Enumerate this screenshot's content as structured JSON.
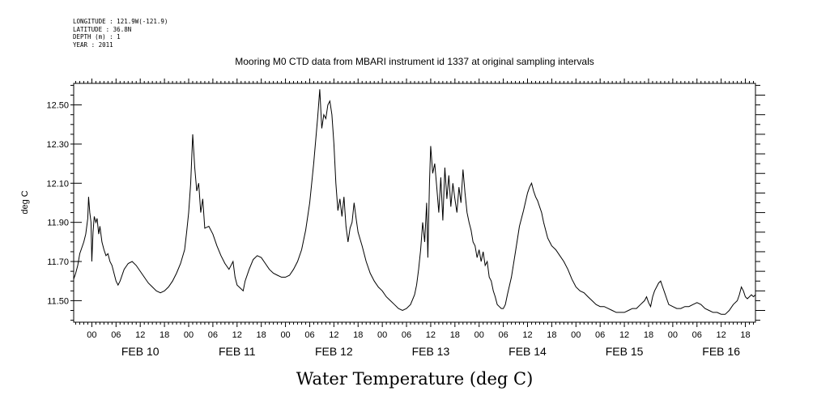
{
  "header": {
    "lines": [
      "LONGITUDE : 121.9W(-121.9)",
      "LATITUDE : 36.8N",
      "DEPTH (m) : 1",
      "YEAR : 2011"
    ]
  },
  "chart_data": {
    "type": "line",
    "title": "Mooring M0 CTD data from MBARI instrument id 1337 at original sampling intervals",
    "xlabel": "Water Temperature (deg C)",
    "ylabel": "deg C",
    "ylim": [
      11.39,
      12.61
    ],
    "xlim_hours_from_feb10_00": [
      -4.5,
      164.5
    ],
    "y_ticks": [
      "11.50",
      "11.70",
      "11.90",
      "12.10",
      "12.30",
      "12.50"
    ],
    "y_tick_values": [
      11.5,
      11.7,
      11.9,
      12.1,
      12.3,
      12.5
    ],
    "hour_tick_labels": [
      "00",
      "06",
      "12",
      "18"
    ],
    "date_labels": [
      "FEB 10",
      "FEB 11",
      "FEB 12",
      "FEB 13",
      "FEB 14",
      "FEB 15",
      "FEB 16"
    ],
    "grid": false,
    "series": [
      {
        "points": [
          [
            -4.5,
            11.61
          ],
          [
            -4,
            11.64
          ],
          [
            -3.5,
            11.68
          ],
          [
            -3,
            11.74
          ],
          [
            -2.5,
            11.77
          ],
          [
            -2,
            11.8
          ],
          [
            -1.5,
            11.84
          ],
          [
            -1,
            11.92
          ],
          [
            -0.8,
            12.03
          ],
          [
            -0.5,
            11.95
          ],
          [
            -0.2,
            11.9
          ],
          [
            0,
            11.7
          ],
          [
            0.3,
            11.85
          ],
          [
            0.6,
            11.93
          ],
          [
            1,
            11.9
          ],
          [
            1.3,
            11.92
          ],
          [
            1.7,
            11.84
          ],
          [
            2,
            11.88
          ],
          [
            2.5,
            11.8
          ],
          [
            3,
            11.76
          ],
          [
            3.5,
            11.73
          ],
          [
            4,
            11.74
          ],
          [
            4.5,
            11.7
          ],
          [
            5,
            11.68
          ],
          [
            5.5,
            11.64
          ],
          [
            6,
            11.6
          ],
          [
            6.5,
            11.58
          ],
          [
            7,
            11.6
          ],
          [
            8,
            11.66
          ],
          [
            9,
            11.69
          ],
          [
            10,
            11.7
          ],
          [
            11,
            11.68
          ],
          [
            12,
            11.65
          ],
          [
            13,
            11.62
          ],
          [
            14,
            11.59
          ],
          [
            15,
            11.57
          ],
          [
            16,
            11.55
          ],
          [
            17,
            11.54
          ],
          [
            18,
            11.55
          ],
          [
            19,
            11.57
          ],
          [
            20,
            11.6
          ],
          [
            21,
            11.64
          ],
          [
            22,
            11.69
          ],
          [
            23,
            11.76
          ],
          [
            23.5,
            11.85
          ],
          [
            24,
            11.95
          ],
          [
            24.5,
            12.1
          ],
          [
            25,
            12.35
          ],
          [
            25.5,
            12.18
          ],
          [
            26,
            12.06
          ],
          [
            26.5,
            12.1
          ],
          [
            27,
            11.95
          ],
          [
            27.5,
            12.02
          ],
          [
            28,
            11.87
          ],
          [
            29,
            11.88
          ],
          [
            30,
            11.84
          ],
          [
            31,
            11.78
          ],
          [
            32,
            11.73
          ],
          [
            33,
            11.69
          ],
          [
            34,
            11.66
          ],
          [
            35,
            11.7
          ],
          [
            35.5,
            11.62
          ],
          [
            36,
            11.58
          ],
          [
            37,
            11.56
          ],
          [
            37.5,
            11.55
          ],
          [
            38,
            11.6
          ],
          [
            39,
            11.66
          ],
          [
            40,
            11.71
          ],
          [
            41,
            11.73
          ],
          [
            42,
            11.72
          ],
          [
            43,
            11.69
          ],
          [
            44,
            11.66
          ],
          [
            45,
            11.64
          ],
          [
            46,
            11.63
          ],
          [
            47,
            11.62
          ],
          [
            48,
            11.62
          ],
          [
            49,
            11.63
          ],
          [
            50,
            11.66
          ],
          [
            51,
            11.7
          ],
          [
            52,
            11.76
          ],
          [
            53,
            11.86
          ],
          [
            54,
            12
          ],
          [
            55,
            12.2
          ],
          [
            56,
            12.44
          ],
          [
            56.5,
            12.58
          ],
          [
            57,
            12.38
          ],
          [
            57.5,
            12.45
          ],
          [
            58,
            12.43
          ],
          [
            58.5,
            12.5
          ],
          [
            59,
            12.52
          ],
          [
            59.5,
            12.45
          ],
          [
            60,
            12.3
          ],
          [
            60.5,
            12.1
          ],
          [
            61,
            11.96
          ],
          [
            61.5,
            12.02
          ],
          [
            62,
            11.93
          ],
          [
            62.5,
            12.03
          ],
          [
            63,
            11.88
          ],
          [
            63.5,
            11.8
          ],
          [
            64,
            11.87
          ],
          [
            64.5,
            11.9
          ],
          [
            65,
            12.0
          ],
          [
            65.5,
            11.92
          ],
          [
            66,
            11.85
          ],
          [
            67,
            11.78
          ],
          [
            68,
            11.7
          ],
          [
            69,
            11.64
          ],
          [
            70,
            11.6
          ],
          [
            71,
            11.57
          ],
          [
            72,
            11.55
          ],
          [
            73,
            11.52
          ],
          [
            74,
            11.5
          ],
          [
            75,
            11.48
          ],
          [
            76,
            11.46
          ],
          [
            77,
            11.45
          ],
          [
            78,
            11.46
          ],
          [
            79,
            11.48
          ],
          [
            80,
            11.53
          ],
          [
            80.5,
            11.58
          ],
          [
            81,
            11.66
          ],
          [
            81.5,
            11.76
          ],
          [
            82,
            11.9
          ],
          [
            82.5,
            11.8
          ],
          [
            83,
            12.0
          ],
          [
            83.3,
            11.72
          ],
          [
            83.7,
            12.1
          ],
          [
            84,
            12.29
          ],
          [
            84.5,
            12.15
          ],
          [
            85,
            12.2
          ],
          [
            85.5,
            12.08
          ],
          [
            86,
            11.95
          ],
          [
            86.5,
            12.13
          ],
          [
            87,
            11.91
          ],
          [
            87.5,
            12.18
          ],
          [
            88,
            12.02
          ],
          [
            88.5,
            12.14
          ],
          [
            89,
            11.98
          ],
          [
            89.5,
            12.1
          ],
          [
            90,
            12.02
          ],
          [
            90.5,
            11.95
          ],
          [
            91,
            12.08
          ],
          [
            91.5,
            12.0
          ],
          [
            92,
            12.17
          ],
          [
            92.5,
            12.05
          ],
          [
            93,
            11.95
          ],
          [
            93.5,
            11.9
          ],
          [
            94,
            11.86
          ],
          [
            94.5,
            11.8
          ],
          [
            95,
            11.78
          ],
          [
            95.5,
            11.72
          ],
          [
            96,
            11.76
          ],
          [
            96.5,
            11.7
          ],
          [
            97,
            11.75
          ],
          [
            97.5,
            11.68
          ],
          [
            98,
            11.7
          ],
          [
            98.5,
            11.62
          ],
          [
            99,
            11.6
          ],
          [
            99.5,
            11.55
          ],
          [
            100,
            11.52
          ],
          [
            100.5,
            11.48
          ],
          [
            101,
            11.47
          ],
          [
            101.5,
            11.46
          ],
          [
            102,
            11.46
          ],
          [
            102.5,
            11.48
          ],
          [
            103,
            11.53
          ],
          [
            104,
            11.62
          ],
          [
            105,
            11.75
          ],
          [
            106,
            11.88
          ],
          [
            107,
            11.96
          ],
          [
            108,
            12.05
          ],
          [
            108.5,
            12.08
          ],
          [
            109,
            12.1
          ],
          [
            109.5,
            12.06
          ],
          [
            110,
            12.03
          ],
          [
            110.5,
            12.01
          ],
          [
            111,
            11.98
          ],
          [
            111.5,
            11.95
          ],
          [
            112,
            11.9
          ],
          [
            112.5,
            11.86
          ],
          [
            113,
            11.82
          ],
          [
            113.5,
            11.8
          ],
          [
            114,
            11.78
          ],
          [
            115,
            11.76
          ],
          [
            116,
            11.73
          ],
          [
            117,
            11.7
          ],
          [
            118,
            11.66
          ],
          [
            119,
            11.61
          ],
          [
            120,
            11.57
          ],
          [
            121,
            11.55
          ],
          [
            122,
            11.54
          ],
          [
            123,
            11.52
          ],
          [
            124,
            11.5
          ],
          [
            125,
            11.48
          ],
          [
            126,
            11.47
          ],
          [
            127,
            11.47
          ],
          [
            128,
            11.46
          ],
          [
            129,
            11.45
          ],
          [
            130,
            11.44
          ],
          [
            131,
            11.44
          ],
          [
            132,
            11.44
          ],
          [
            133,
            11.45
          ],
          [
            134,
            11.46
          ],
          [
            135,
            11.46
          ],
          [
            136,
            11.48
          ],
          [
            137,
            11.5
          ],
          [
            137.5,
            11.52
          ],
          [
            138,
            11.49
          ],
          [
            138.5,
            11.47
          ],
          [
            139,
            11.52
          ],
          [
            139.5,
            11.55
          ],
          [
            140,
            11.57
          ],
          [
            140.5,
            11.59
          ],
          [
            141,
            11.6
          ],
          [
            141.5,
            11.57
          ],
          [
            142,
            11.54
          ],
          [
            142.5,
            11.51
          ],
          [
            143,
            11.48
          ],
          [
            144,
            11.47
          ],
          [
            145,
            11.46
          ],
          [
            146,
            11.46
          ],
          [
            147,
            11.47
          ],
          [
            148,
            11.47
          ],
          [
            149,
            11.48
          ],
          [
            150,
            11.49
          ],
          [
            151,
            11.48
          ],
          [
            152,
            11.46
          ],
          [
            153,
            11.45
          ],
          [
            154,
            11.44
          ],
          [
            155,
            11.44
          ],
          [
            156,
            11.43
          ],
          [
            157,
            11.43
          ],
          [
            158,
            11.45
          ],
          [
            159,
            11.48
          ],
          [
            160,
            11.5
          ],
          [
            160.5,
            11.53
          ],
          [
            161,
            11.57
          ],
          [
            161.5,
            11.55
          ],
          [
            162,
            11.52
          ],
          [
            162.5,
            11.51
          ],
          [
            163,
            11.52
          ],
          [
            163.5,
            11.53
          ],
          [
            164,
            11.52
          ],
          [
            164.5,
            11.53
          ]
        ]
      }
    ]
  }
}
